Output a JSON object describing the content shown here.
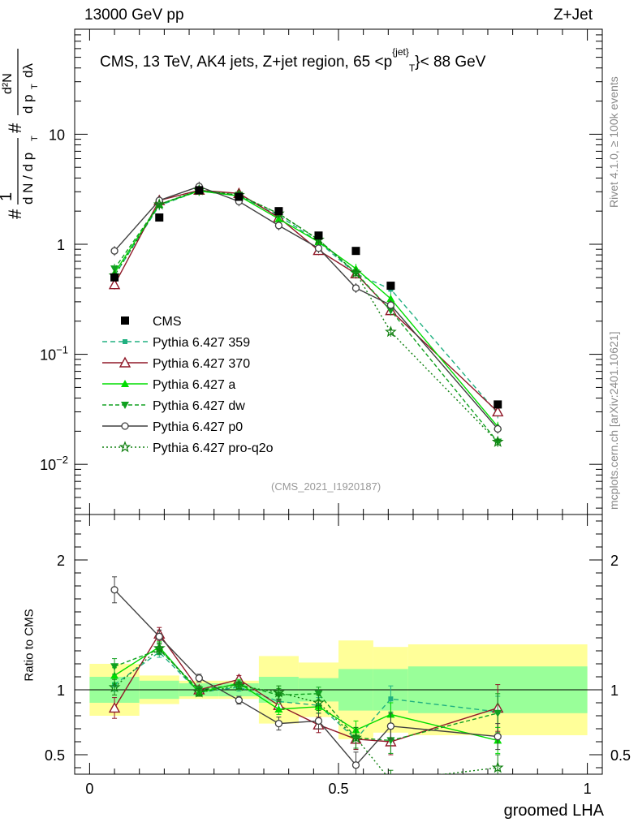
{
  "header": {
    "left": "13000 GeV pp",
    "right": "Z+Jet"
  },
  "side_labels": {
    "rivet": "Rivet 4.1.0, ≥ 100k events",
    "mcplots": "mcplots.cern.ch [arXiv:2401.10621]"
  },
  "chart_data": {
    "type": "line",
    "title_parts": {
      "before": "CMS, 13 TeV, AK4 jets, Z+jet region, 65 <p",
      "sup": "{jet}",
      "sub": "T",
      "after": "}< 88 GeV"
    },
    "ylabel": "# 1/(dN/dp_T) # d^2N/(dp_T dlambda)",
    "ylabel_parts": [
      "#",
      "1",
      "d N / d p",
      "T",
      "#",
      "d²N",
      "d p",
      "T",
      "dλ"
    ],
    "ratio_ylabel": "Ratio to CMS",
    "xlabel": "groomed LHA",
    "watermark": "(CMS_2021_I1920187)",
    "xlim": [
      -0.03,
      1.03
    ],
    "ylim_log": [
      0.0035,
      90
    ],
    "ratio_ylim": [
      0.35,
      2.35
    ],
    "x_ticks": [
      "0",
      "0.5",
      "1"
    ],
    "y_ticks_main": [
      {
        "v": 10,
        "label": "10"
      },
      {
        "v": 1,
        "label": "1"
      },
      {
        "v": 0.1,
        "label": "10",
        "exp": "−1"
      },
      {
        "v": 0.01,
        "label": "10",
        "exp": "−2"
      }
    ],
    "y_ticks_ratio": [
      {
        "v": 2,
        "label": "2"
      },
      {
        "v": 1,
        "label": "1"
      },
      {
        "v": 0.5,
        "label": "0.5"
      }
    ],
    "bins": [
      {
        "lo": 0.0,
        "hi": 0.1
      },
      {
        "lo": 0.1,
        "hi": 0.18
      },
      {
        "lo": 0.18,
        "hi": 0.26
      },
      {
        "lo": 0.26,
        "hi": 0.34
      },
      {
        "lo": 0.34,
        "hi": 0.42
      },
      {
        "lo": 0.42,
        "hi": 0.5
      },
      {
        "lo": 0.5,
        "hi": 0.57
      },
      {
        "lo": 0.57,
        "hi": 0.64
      },
      {
        "lo": 0.64,
        "hi": 1.0
      }
    ],
    "x": [
      0.05,
      0.14,
      0.22,
      0.3,
      0.38,
      0.46,
      0.535,
      0.605,
      0.82
    ],
    "cms": [
      0.5,
      1.75,
      3.1,
      2.7,
      2.0,
      1.2,
      0.87,
      0.42,
      0.035
    ],
    "band_inner": [
      0.1,
      0.07,
      0.05,
      0.05,
      0.1,
      0.09,
      0.16,
      0.16,
      0.18
    ],
    "band_outer": [
      0.2,
      0.11,
      0.07,
      0.07,
      0.26,
      0.21,
      0.38,
      0.33,
      0.35
    ],
    "legend": [
      {
        "key": "cms",
        "label": "CMS"
      },
      {
        "key": "p359",
        "label": "Pythia 6.427 359"
      },
      {
        "key": "p370",
        "label": "Pythia 6.427 370"
      },
      {
        "key": "pa",
        "label": "Pythia 6.427 a"
      },
      {
        "key": "pdw",
        "label": "Pythia 6.427 dw"
      },
      {
        "key": "pp0",
        "label": "Pythia 6.427 p0"
      },
      {
        "key": "pq2o",
        "label": "Pythia 6.427 pro-q2o"
      }
    ],
    "series": [
      {
        "key": "p359",
        "name": "Pythia 6.427 359",
        "color": "#20b080",
        "dash": "6,4",
        "marker": "square",
        "values": [
          0.52,
          2.25,
          3.05,
          2.75,
          1.82,
          1.05,
          0.54,
          0.39,
          0.029
        ],
        "ratio": [
          1.04,
          1.29,
          0.98,
          1.02,
          0.91,
          0.88,
          0.62,
          0.93,
          0.83
        ],
        "ratio_err": [
          0.05,
          0.04,
          0.03,
          0.03,
          0.05,
          0.06,
          0.08,
          0.1,
          0.12
        ]
      },
      {
        "key": "p370",
        "name": "Pythia 6.427 370",
        "color": "#901828",
        "dash": "",
        "marker": "triangle-open",
        "values": [
          0.43,
          2.5,
          3.1,
          2.9,
          1.75,
          0.88,
          0.54,
          0.25,
          0.03
        ],
        "ratio": [
          0.86,
          1.43,
          1.0,
          1.08,
          0.88,
          0.73,
          0.62,
          0.6,
          0.86
        ],
        "ratio_err": [
          0.08,
          0.05,
          0.03,
          0.03,
          0.04,
          0.06,
          0.08,
          0.1,
          0.18
        ]
      },
      {
        "key": "pa",
        "name": "Pythia 6.427 a",
        "color": "#00dd00",
        "dash": "",
        "marker": "triangle",
        "values": [
          0.55,
          2.3,
          3.05,
          2.75,
          1.7,
          1.05,
          0.6,
          0.32,
          0.022
        ],
        "ratio": [
          1.11,
          1.33,
          0.98,
          1.05,
          0.85,
          0.87,
          0.69,
          0.81,
          0.61
        ],
        "ratio_err": [
          0.06,
          0.04,
          0.03,
          0.03,
          0.04,
          0.05,
          0.07,
          0.09,
          0.1
        ]
      },
      {
        "key": "pdw",
        "name": "Pythia 6.427 dw",
        "color": "#10a020",
        "dash": "5,3",
        "marker": "triangle-down",
        "values": [
          0.6,
          2.3,
          3.1,
          2.8,
          1.9,
          1.1,
          0.55,
          0.25,
          0.016
        ],
        "ratio": [
          1.18,
          1.31,
          1.0,
          1.04,
          0.96,
          0.97,
          0.63,
          0.61,
          0.82
        ],
        "ratio_err": [
          0.06,
          0.04,
          0.03,
          0.03,
          0.05,
          0.05,
          0.08,
          0.1,
          0.15
        ]
      },
      {
        "key": "pp0",
        "name": "Pythia 6.427 p0",
        "color": "#404040",
        "dash": "",
        "marker": "circle-open",
        "values": [
          0.87,
          2.5,
          3.35,
          2.45,
          1.48,
          0.92,
          0.4,
          0.28,
          0.021
        ],
        "ratio": [
          1.77,
          1.41,
          1.09,
          0.92,
          0.74,
          0.76,
          0.42,
          0.72,
          0.64
        ],
        "ratio_err": [
          0.1,
          0.05,
          0.03,
          0.03,
          0.05,
          0.06,
          0.1,
          0.1,
          0.1
        ]
      },
      {
        "key": "pq2o",
        "name": "Pythia 6.427 pro-q2o",
        "color": "#108010",
        "dash": "2,3",
        "marker": "star",
        "values": [
          0.52,
          2.3,
          3.1,
          2.8,
          1.9,
          1.1,
          0.55,
          0.16,
          0.016
        ],
        "ratio": [
          1.02,
          1.32,
          0.98,
          1.03,
          0.98,
          0.9,
          0.63,
          0.3,
          0.4
        ],
        "ratio_err": [
          0.06,
          0.04,
          0.03,
          0.03,
          0.05,
          0.06,
          0.08,
          0.08,
          0.1
        ]
      }
    ]
  }
}
